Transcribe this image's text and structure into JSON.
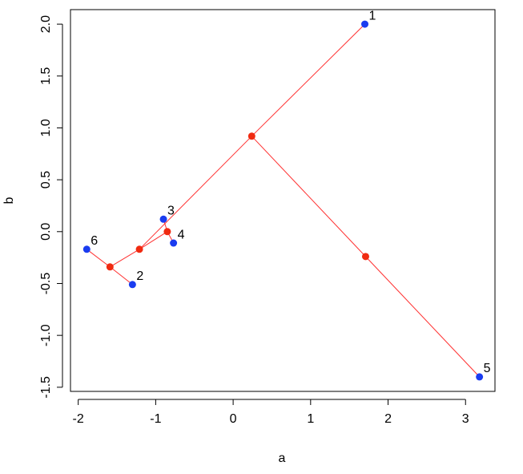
{
  "chart_data": {
    "type": "scatter",
    "x_label": "a",
    "y_label": "b",
    "xlim": [
      -2.1,
      3.38
    ],
    "ylim": [
      -1.54,
      2.14
    ],
    "xticks": [
      -2,
      -1,
      0,
      1,
      2,
      3
    ],
    "yticks": [
      {
        "value": -1.5,
        "label": "-1.5"
      },
      {
        "value": -1.0,
        "label": "-1.0"
      },
      {
        "value": -0.5,
        "label": "-0.5"
      },
      {
        "value": 0,
        "label": "0.0"
      },
      {
        "value": 0.5,
        "label": "0.5"
      },
      {
        "value": 1.0,
        "label": "1.0"
      },
      {
        "value": 1.5,
        "label": "1.5"
      },
      {
        "value": 2.0,
        "label": "2.0"
      }
    ],
    "line_color": "#ff3030",
    "series": [
      {
        "color": "#1a3cf0",
        "x": [
          1.7,
          -1.3,
          -0.9,
          -0.77,
          3.18,
          -1.89
        ],
        "values": [
          2.0,
          -0.51,
          0.12,
          -0.11,
          -1.4,
          -0.17
        ],
        "point_labels": [
          "1",
          "2",
          "3",
          "4",
          "5",
          "6"
        ]
      },
      {
        "color": "#f02a10",
        "x": [
          0.24,
          1.71,
          -0.85,
          -1.21,
          -1.59
        ],
        "values": [
          0.92,
          -0.24,
          0.0,
          -0.17,
          -0.34
        ]
      }
    ]
  }
}
